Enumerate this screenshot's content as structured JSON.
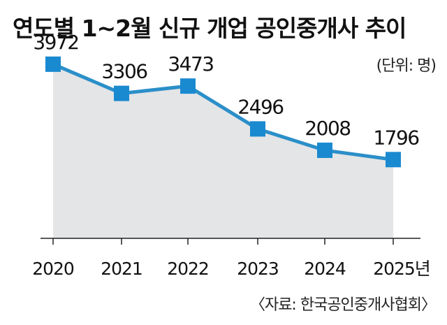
{
  "chart_data": {
    "type": "line",
    "title": "연도별 1~2월 신규 개업 공인중개사 추이",
    "unit": "(단위: 명)",
    "source": "〈자료: 한국공인중개사협회〉",
    "categories": [
      "2020",
      "2021",
      "2022",
      "2023",
      "2024",
      "2025년"
    ],
    "values": [
      3972,
      3306,
      3473,
      2496,
      2008,
      1796
    ],
    "xlabel": "",
    "ylabel": "",
    "ylim": [
      0,
      4400
    ],
    "grid": false,
    "colors": {
      "line": "#2b8fc9",
      "marker": "#1a8ad0",
      "fill": "#e4e5e6",
      "baseline": "#222222"
    }
  }
}
